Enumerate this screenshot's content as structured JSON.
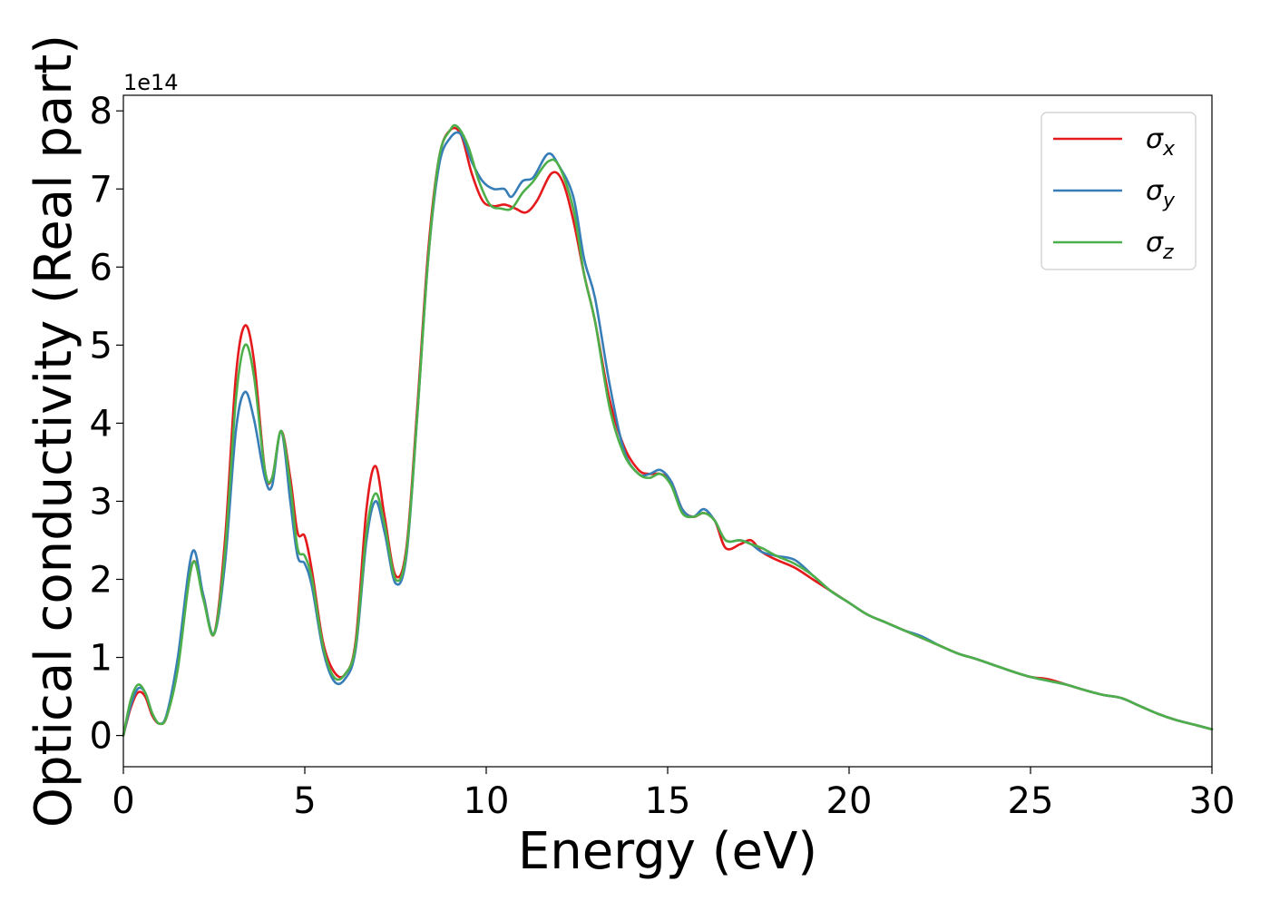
{
  "chart_data": {
    "type": "line",
    "xlabel": "Energy (eV)",
    "ylabel": "Optical conductivity (Real part)",
    "y_offset_label": "1e14",
    "xlim": [
      0,
      30
    ],
    "ylim": [
      -0.4,
      8.2
    ],
    "x_ticks": [
      "0",
      "5",
      "10",
      "15",
      "20",
      "25",
      "30"
    ],
    "y_ticks": [
      "0",
      "1",
      "2",
      "3",
      "4",
      "5",
      "6",
      "7",
      "8"
    ],
    "grid": false,
    "legend_position": "top-right",
    "legend": [
      {
        "symbol": "σ",
        "sub": "x",
        "color": "#e41a1c"
      },
      {
        "symbol": "σ",
        "sub": "y",
        "color": "#377eb8"
      },
      {
        "symbol": "σ",
        "sub": "z",
        "color": "#4daf4a"
      }
    ],
    "series": [
      {
        "name": "σx",
        "color": "#e41a1c",
        "x": [
          0,
          0.2,
          0.4,
          0.6,
          0.8,
          1.0,
          1.2,
          1.5,
          1.9,
          2.2,
          2.5,
          2.8,
          3.1,
          3.35,
          3.6,
          3.9,
          4.1,
          4.35,
          4.6,
          4.8,
          5.0,
          5.2,
          5.5,
          5.8,
          6.1,
          6.4,
          6.7,
          6.95,
          7.2,
          7.5,
          7.8,
          8.1,
          8.4,
          8.7,
          9.0,
          9.3,
          9.6,
          9.9,
          10.2,
          10.5,
          10.8,
          11.1,
          11.4,
          11.8,
          12.1,
          12.4,
          12.7,
          13.0,
          13.4,
          13.8,
          14.2,
          14.5,
          14.8,
          15.1,
          15.4,
          15.7,
          16.0,
          16.3,
          16.6,
          17.0,
          17.3,
          17.6,
          18.0,
          18.5,
          19.0,
          19.5,
          20.0,
          20.5,
          21.0,
          21.5,
          22.0,
          22.5,
          23.0,
          23.5,
          24.0,
          24.5,
          25.0,
          25.5,
          26.0,
          26.5,
          27.0,
          27.5,
          28.0,
          28.5,
          29.0,
          29.5,
          30.0
        ],
        "y": [
          0,
          0.35,
          0.55,
          0.5,
          0.25,
          0.15,
          0.25,
          0.9,
          2.2,
          1.8,
          1.3,
          2.5,
          4.6,
          5.25,
          4.8,
          3.4,
          3.3,
          3.9,
          3.3,
          2.6,
          2.55,
          2.1,
          1.2,
          0.82,
          0.78,
          1.2,
          2.9,
          3.45,
          2.8,
          2.05,
          2.4,
          4.2,
          6.2,
          7.4,
          7.75,
          7.7,
          7.2,
          6.85,
          6.78,
          6.8,
          6.75,
          6.7,
          6.85,
          7.2,
          7.1,
          6.6,
          5.9,
          5.3,
          4.3,
          3.7,
          3.4,
          3.35,
          3.35,
          3.25,
          2.9,
          2.8,
          2.85,
          2.75,
          2.4,
          2.45,
          2.5,
          2.35,
          2.25,
          2.15,
          2.0,
          1.85,
          1.7,
          1.55,
          1.45,
          1.35,
          1.25,
          1.15,
          1.05,
          0.98,
          0.9,
          0.82,
          0.75,
          0.72,
          0.65,
          0.58,
          0.52,
          0.48,
          0.38,
          0.28,
          0.2,
          0.14,
          0.08
        ]
      },
      {
        "name": "σy",
        "color": "#377eb8",
        "x": [
          0,
          0.2,
          0.4,
          0.6,
          0.8,
          1.0,
          1.2,
          1.5,
          1.9,
          2.2,
          2.5,
          2.8,
          3.1,
          3.35,
          3.6,
          3.9,
          4.1,
          4.35,
          4.6,
          4.8,
          5.0,
          5.2,
          5.5,
          5.8,
          6.1,
          6.4,
          6.7,
          6.95,
          7.2,
          7.5,
          7.8,
          8.1,
          8.4,
          8.7,
          9.0,
          9.3,
          9.6,
          9.9,
          10.2,
          10.5,
          10.7,
          11.0,
          11.3,
          11.7,
          12.0,
          12.4,
          12.7,
          13.0,
          13.4,
          13.8,
          14.2,
          14.5,
          14.8,
          15.1,
          15.4,
          15.7,
          16.0,
          16.3,
          16.6,
          17.0,
          17.3,
          17.6,
          18.0,
          18.5,
          19.0,
          19.5,
          20.0,
          20.5,
          21.0,
          21.5,
          22.0,
          22.5,
          23.0,
          23.5,
          24.0,
          24.5,
          25.0,
          25.5,
          26.0,
          26.5,
          27.0,
          27.5,
          28.0,
          28.5,
          29.0,
          29.5,
          30.0
        ],
        "y": [
          0,
          0.38,
          0.6,
          0.55,
          0.28,
          0.15,
          0.28,
          1.0,
          2.35,
          1.8,
          1.3,
          2.2,
          3.9,
          4.4,
          4.05,
          3.3,
          3.2,
          3.9,
          3.0,
          2.3,
          2.2,
          1.9,
          1.1,
          0.7,
          0.72,
          1.1,
          2.5,
          3.0,
          2.6,
          1.95,
          2.3,
          4.1,
          6.1,
          7.3,
          7.65,
          7.7,
          7.35,
          7.1,
          7.0,
          7.0,
          6.9,
          7.1,
          7.15,
          7.45,
          7.3,
          6.9,
          6.1,
          5.6,
          4.5,
          3.65,
          3.35,
          3.35,
          3.4,
          3.25,
          2.9,
          2.8,
          2.9,
          2.75,
          2.5,
          2.5,
          2.45,
          2.35,
          2.3,
          2.25,
          2.05,
          1.85,
          1.7,
          1.55,
          1.45,
          1.35,
          1.27,
          1.15,
          1.05,
          0.98,
          0.9,
          0.82,
          0.75,
          0.7,
          0.65,
          0.58,
          0.52,
          0.48,
          0.38,
          0.28,
          0.2,
          0.14,
          0.08
        ]
      },
      {
        "name": "σz",
        "color": "#4daf4a",
        "x": [
          0,
          0.2,
          0.4,
          0.6,
          0.8,
          1.0,
          1.2,
          1.5,
          1.9,
          2.2,
          2.5,
          2.8,
          3.1,
          3.35,
          3.6,
          3.9,
          4.1,
          4.35,
          4.6,
          4.8,
          5.0,
          5.2,
          5.5,
          5.8,
          6.1,
          6.4,
          6.7,
          6.95,
          7.2,
          7.5,
          7.8,
          8.1,
          8.4,
          8.7,
          9.0,
          9.2,
          9.5,
          9.8,
          10.1,
          10.4,
          10.7,
          11.0,
          11.3,
          11.7,
          12.0,
          12.4,
          12.7,
          13.0,
          13.4,
          13.8,
          14.2,
          14.5,
          14.8,
          15.1,
          15.4,
          15.7,
          16.0,
          16.3,
          16.6,
          17.0,
          17.3,
          17.6,
          18.0,
          18.5,
          19.0,
          19.5,
          20.0,
          20.5,
          21.0,
          21.5,
          22.0,
          22.5,
          23.0,
          23.5,
          24.0,
          24.5,
          25.0,
          25.5,
          26.0,
          26.5,
          27.0,
          27.5,
          28.0,
          28.5,
          29.0,
          29.5,
          30.0
        ],
        "y": [
          0,
          0.45,
          0.65,
          0.55,
          0.28,
          0.15,
          0.25,
          0.85,
          2.2,
          1.75,
          1.3,
          2.35,
          4.3,
          5.0,
          4.6,
          3.4,
          3.3,
          3.9,
          3.2,
          2.4,
          2.3,
          2.0,
          1.15,
          0.75,
          0.78,
          1.15,
          2.6,
          3.1,
          2.7,
          2.0,
          2.35,
          4.1,
          6.1,
          7.4,
          7.75,
          7.8,
          7.55,
          7.1,
          6.8,
          6.75,
          6.75,
          6.95,
          7.1,
          7.35,
          7.3,
          6.75,
          5.9,
          5.3,
          4.2,
          3.6,
          3.35,
          3.3,
          3.35,
          3.2,
          2.85,
          2.8,
          2.85,
          2.75,
          2.5,
          2.5,
          2.45,
          2.4,
          2.3,
          2.2,
          2.05,
          1.85,
          1.7,
          1.55,
          1.45,
          1.35,
          1.25,
          1.15,
          1.05,
          0.98,
          0.9,
          0.82,
          0.75,
          0.7,
          0.65,
          0.58,
          0.52,
          0.48,
          0.38,
          0.28,
          0.2,
          0.14,
          0.08
        ]
      }
    ]
  }
}
